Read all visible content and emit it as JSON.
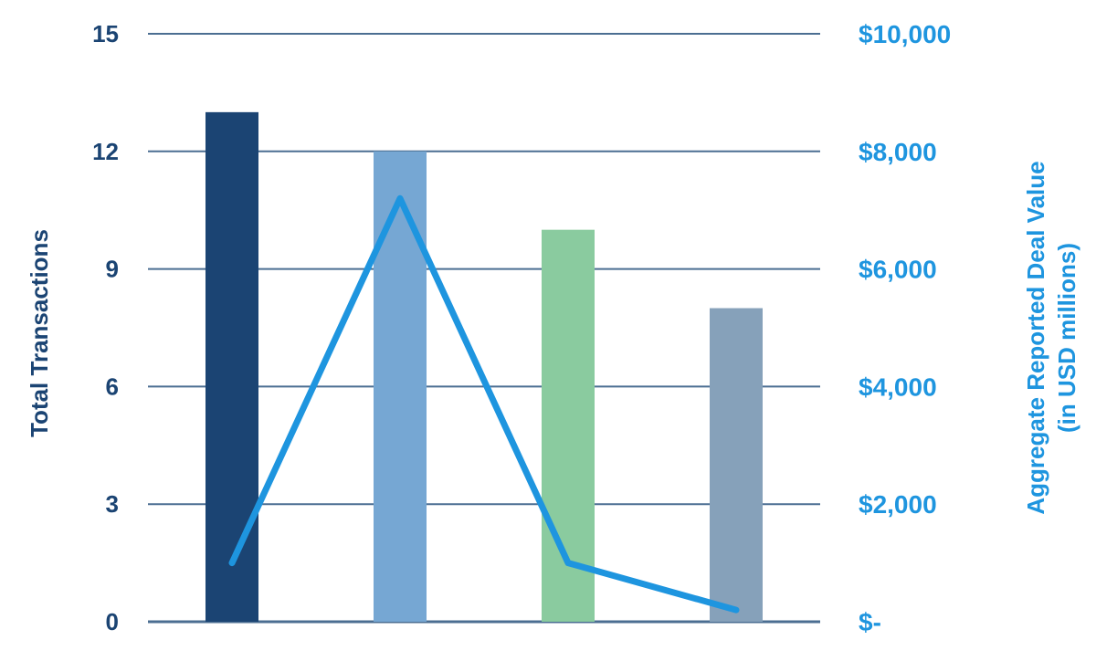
{
  "chart_data": {
    "type": "bar+line",
    "categories": [
      "",
      "",
      "",
      ""
    ],
    "bar_series": {
      "axis": "left",
      "values": [
        13,
        12,
        10,
        8
      ],
      "colors": [
        "#1b4473",
        "#76a7d3",
        "#8acb9f",
        "#86a1ba"
      ]
    },
    "line_series": {
      "axis": "right",
      "values": [
        1000,
        7200,
        1000,
        200
      ],
      "color": "#1e95df"
    },
    "left_axis": {
      "label": "Total Transactions",
      "ylim": [
        0,
        15
      ],
      "ticks": [
        0,
        3,
        6,
        9,
        12,
        15
      ],
      "tick_labels": [
        "0",
        "3",
        "6",
        "9",
        "12",
        "15"
      ],
      "color": "#1b4473"
    },
    "right_axis": {
      "label_line1": "Aggregate Reported Deal Value",
      "label_line2": "(in USD millions)",
      "ylim": [
        0,
        10000
      ],
      "ticks": [
        0,
        2000,
        4000,
        6000,
        8000,
        10000
      ],
      "tick_labels": [
        "$-",
        "$2,000",
        "$4,000",
        "$6,000",
        "$8,000",
        "$10,000"
      ],
      "color": "#1e95df"
    },
    "grid": true,
    "grid_color": "#4b6e92",
    "legend": "none"
  }
}
